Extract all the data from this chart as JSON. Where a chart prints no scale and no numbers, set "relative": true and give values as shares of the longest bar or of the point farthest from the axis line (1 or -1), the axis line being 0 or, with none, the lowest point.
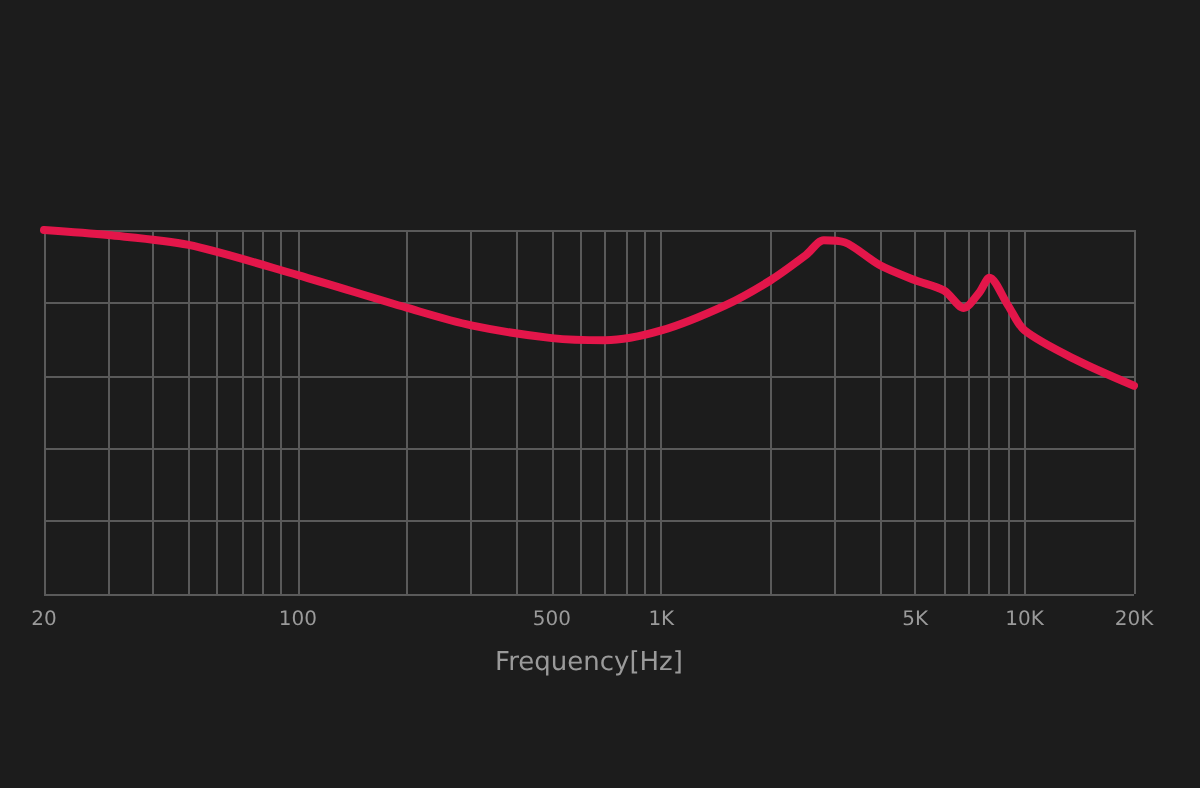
{
  "chart_data": {
    "type": "line",
    "relative": true,
    "xlabel": "Frequency[Hz]",
    "log": "x",
    "grid": true,
    "marker": "none",
    "line_style": "solid",
    "x": [
      20,
      30,
      50,
      100,
      200,
      300,
      500,
      700,
      1000,
      1500,
      2000,
      2500,
      2800,
      3200,
      4000,
      5000,
      6000,
      6800,
      7500,
      8000,
      9000,
      10000,
      14000,
      20000
    ],
    "xlim": [
      20,
      20000
    ],
    "xticks": [
      20,
      {
        "value": 30,
        "label": null
      },
      {
        "value": 40,
        "label": null
      },
      {
        "value": 50,
        "label": null
      },
      {
        "value": 60,
        "label": null
      },
      {
        "value": 70,
        "label": null
      },
      {
        "value": 80,
        "label": null
      },
      {
        "value": 90,
        "label": null
      },
      100,
      {
        "value": 200,
        "label": null
      },
      {
        "value": 300,
        "label": null
      },
      {
        "value": 400,
        "label": null
      },
      500,
      {
        "value": 600,
        "label": null
      },
      {
        "value": 700,
        "label": null
      },
      {
        "value": 800,
        "label": null
      },
      {
        "value": 900,
        "label": null
      },
      {
        "value": 1000,
        "label": "1K"
      },
      {
        "value": 2000,
        "label": null
      },
      {
        "value": 3000,
        "label": null
      },
      {
        "value": 4000,
        "label": null
      },
      {
        "value": 5000,
        "label": "5K"
      },
      {
        "value": 6000,
        "label": null
      },
      {
        "value": 7000,
        "label": null
      },
      {
        "value": 8000,
        "label": null
      },
      {
        "value": 9000,
        "label": null
      },
      {
        "value": 10000,
        "label": "10K"
      },
      {
        "value": 20000,
        "label": "20K"
      }
    ],
    "series": [
      {
        "color": "#e3164a",
        "values": [
          1.0,
          0.986,
          0.959,
          0.876,
          0.786,
          0.738,
          0.703,
          0.697,
          0.724,
          0.793,
          0.862,
          0.931,
          0.972,
          0.966,
          0.903,
          0.862,
          0.834,
          0.786,
          0.828,
          0.869,
          0.793,
          0.724,
          0.641,
          0.572
        ]
      }
    ]
  }
}
